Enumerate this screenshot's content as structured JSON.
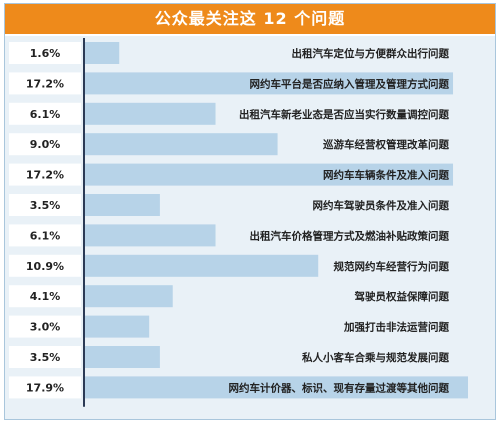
{
  "chart_data": {
    "type": "bar",
    "orientation": "horizontal",
    "title": "公众最关注这 12 个问题",
    "categories": [
      "出租汽车定位与方便群众出行问题",
      "网约车平台是否应纳入管理及管理方式问题",
      "出租汽车新老业态是否应当实行数量调控问题",
      "巡游车经营权管理改革问题",
      "网约车车辆条件及准入问题",
      "网约车驾驶员条件及准入问题",
      "出租汽车价格管理方式及燃油补贴政策问题",
      "规范网约车经营行为问题",
      "驾驶员权益保障问题",
      "加强打击非法运营问题",
      "私人小客车合乘与规范发展问题",
      "网约车计价器、标识、现有存量过渡等其他问题"
    ],
    "values": [
      1.6,
      17.2,
      6.1,
      9.0,
      17.2,
      3.5,
      6.1,
      10.9,
      4.1,
      3.0,
      3.5,
      17.9
    ],
    "value_labels": [
      "1.6%",
      "17.2%",
      "6.1%",
      "9.0%",
      "17.2%",
      "3.5%",
      "6.1%",
      "10.9%",
      "4.1%",
      "3.0%",
      "3.5%",
      "17.9%"
    ],
    "xlim": [
      0,
      17.9
    ],
    "grid": false,
    "legend": "none",
    "colors": {
      "title_bg": "#ee8a1b",
      "title_text": "#ffffff",
      "panel_bg": "#e9f1f7",
      "label_cell": "#ffffff",
      "bar_fill": "#b7d3e8",
      "divider": "#2b3a55",
      "text": "#222222"
    }
  }
}
